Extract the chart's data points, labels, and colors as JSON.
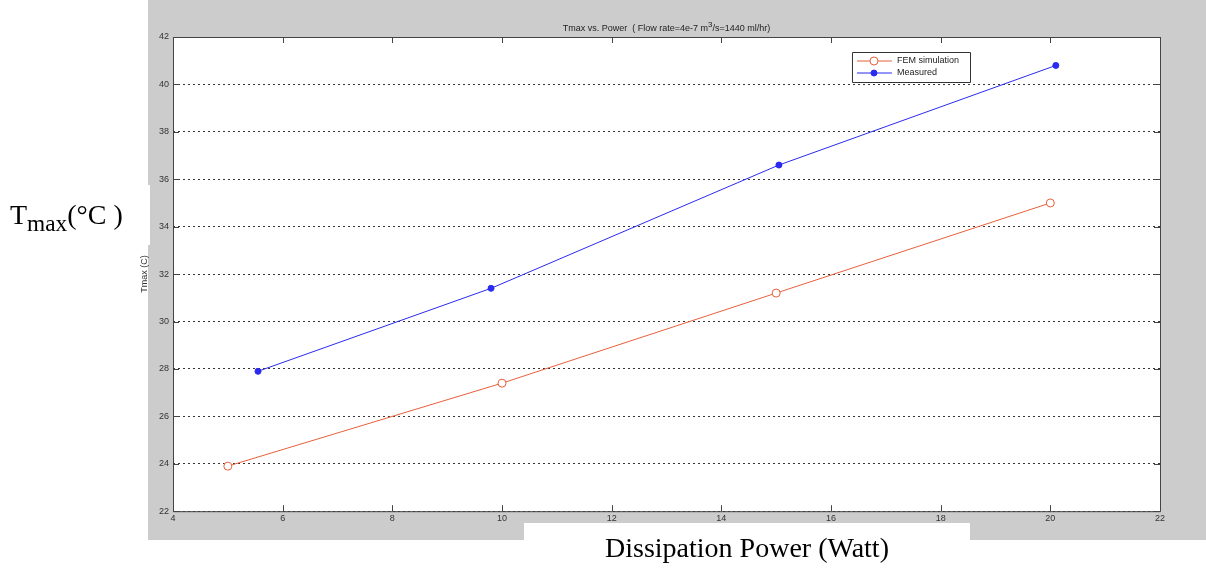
{
  "chart_data": {
    "type": "line",
    "title": "Tmax vs. Power  ( Flow rate=4e-7 m$^{3}$/s=1440 ml/hr)",
    "xlabel": "Dissipation Power (Watt)",
    "ylabel": "T$_{max}$(°C  )",
    "annotations": [
      "Tmax (C)"
    ],
    "series": [
      {
        "name": "FEM simulation",
        "color": "#e8603c",
        "marker": "circle",
        "x": [
          5,
          10,
          15,
          20
        ],
        "values": [
          23.9,
          27.4,
          31.2,
          35.0
        ]
      },
      {
        "name": "Measured",
        "color": "#2a2af0",
        "marker": "dot",
        "x": [
          5.55,
          9.8,
          15.05,
          20.1
        ],
        "values": [
          27.9,
          31.4,
          36.6,
          40.8
        ]
      }
    ],
    "xlim": [
      4,
      22
    ],
    "xticks": [
      4,
      6,
      8,
      10,
      12,
      14,
      16,
      18,
      20,
      22
    ],
    "ylim": [
      22,
      42
    ],
    "yticks": [
      22,
      24,
      26,
      28,
      30,
      32,
      34,
      36,
      38,
      40,
      42
    ],
    "grid": "y",
    "legend": "top right",
    "line_style": "solid"
  }
}
